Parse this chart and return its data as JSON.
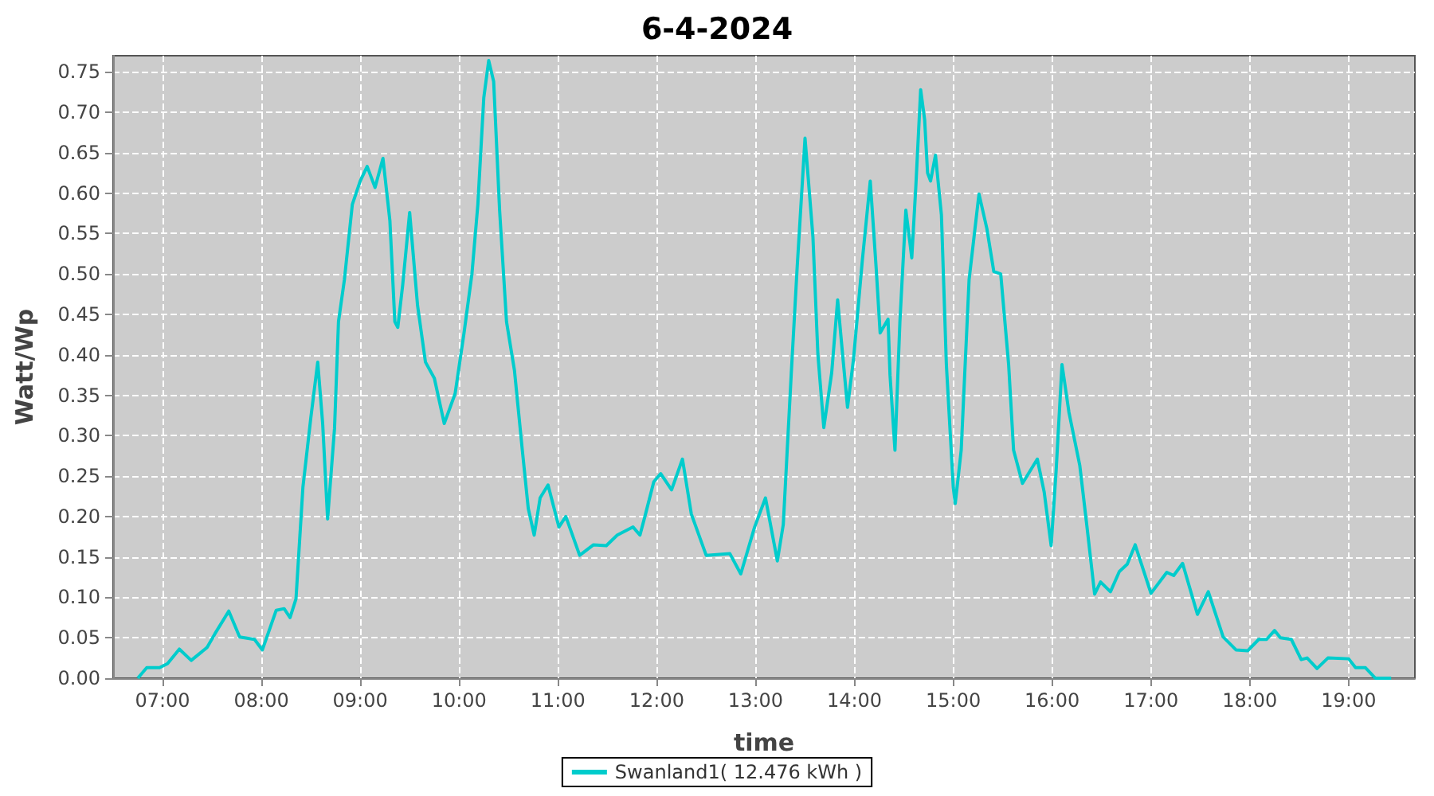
{
  "chart_data": {
    "type": "line",
    "title": "6-4-2024",
    "xlabel": "time",
    "ylabel": "Watt/Wp",
    "x": [
      6.75,
      6.84,
      6.97,
      7.05,
      7.17,
      7.29,
      7.45,
      7.53,
      7.67,
      7.78,
      7.93,
      8.01,
      8.15,
      8.23,
      8.29,
      8.35,
      8.42,
      8.5,
      8.57,
      8.62,
      8.67,
      8.74,
      8.78,
      8.84,
      8.92,
      9.0,
      9.07,
      9.15,
      9.23,
      9.3,
      9.35,
      9.38,
      9.43,
      9.5,
      9.58,
      9.66,
      9.75,
      9.85,
      9.96,
      10.05,
      10.13,
      10.19,
      10.25,
      10.3,
      10.35,
      10.41,
      10.48,
      10.56,
      10.64,
      10.7,
      10.76,
      10.82,
      10.9,
      11.01,
      11.08,
      11.22,
      11.36,
      11.49,
      11.6,
      11.76,
      11.83,
      11.88,
      11.97,
      12.04,
      12.15,
      12.26,
      12.35,
      12.5,
      12.74,
      12.85,
      12.99,
      13.1,
      13.22,
      13.28,
      13.36,
      13.42,
      13.5,
      13.58,
      13.63,
      13.69,
      13.77,
      13.83,
      13.87,
      13.93,
      13.99,
      14.08,
      14.16,
      14.22,
      14.26,
      14.34,
      14.36,
      14.41,
      14.46,
      14.52,
      14.56,
      14.58,
      14.62,
      14.67,
      14.71,
      14.74,
      14.77,
      14.82,
      14.88,
      14.93,
      15.0,
      15.02,
      15.08,
      15.16,
      15.26,
      15.34,
      15.41,
      15.48,
      15.56,
      15.61,
      15.7,
      15.85,
      15.92,
      15.99,
      16.04,
      16.1,
      16.17,
      16.28,
      16.35,
      16.43,
      16.49,
      16.59,
      16.68,
      16.76,
      16.84,
      17.0,
      17.16,
      17.23,
      17.32,
      17.47,
      17.58,
      17.73,
      17.86,
      17.98,
      18.09,
      18.17,
      18.25,
      18.31,
      18.42,
      18.52,
      18.58,
      18.68,
      18.79,
      19.0,
      19.07,
      19.17,
      19.27,
      19.43
    ],
    "series": [
      {
        "name": "Swanland1( 12.476 kWh )",
        "color": "#00cccc",
        "values": [
          0,
          0.013,
          0.013,
          0.018,
          0.036,
          0.022,
          0.038,
          0.055,
          0.083,
          0.051,
          0.048,
          0.035,
          0.084,
          0.086,
          0.075,
          0.098,
          0.236,
          0.322,
          0.391,
          0.315,
          0.197,
          0.309,
          0.441,
          0.493,
          0.586,
          0.615,
          0.633,
          0.607,
          0.643,
          0.566,
          0.441,
          0.434,
          0.487,
          0.576,
          0.461,
          0.391,
          0.371,
          0.315,
          0.352,
          0.427,
          0.5,
          0.586,
          0.718,
          0.764,
          0.738,
          0.579,
          0.441,
          0.381,
          0.282,
          0.21,
          0.177,
          0.223,
          0.239,
          0.187,
          0.2,
          0.152,
          0.165,
          0.164,
          0.177,
          0.187,
          0.177,
          0.2,
          0.243,
          0.253,
          0.233,
          0.271,
          0.203,
          0.152,
          0.154,
          0.129,
          0.187,
          0.223,
          0.145,
          0.19,
          0.375,
          0.507,
          0.668,
          0.546,
          0.401,
          0.31,
          0.378,
          0.468,
          0.414,
          0.335,
          0.394,
          0.517,
          0.615,
          0.507,
          0.427,
          0.444,
          0.375,
          0.282,
          0.441,
          0.579,
          0.54,
          0.52,
          0.606,
          0.728,
          0.691,
          0.625,
          0.615,
          0.647,
          0.573,
          0.388,
          0.236,
          0.216,
          0.282,
          0.493,
          0.599,
          0.556,
          0.503,
          0.5,
          0.388,
          0.282,
          0.241,
          0.271,
          0.23,
          0.164,
          0.256,
          0.388,
          0.329,
          0.263,
          0.19,
          0.104,
          0.119,
          0.107,
          0.132,
          0.141,
          0.165,
          0.105,
          0.131,
          0.127,
          0.142,
          0.079,
          0.107,
          0.051,
          0.035,
          0.034,
          0.048,
          0.048,
          0.059,
          0.05,
          0.048,
          0.023,
          0.025,
          0.012,
          0.025,
          0.024,
          0.013,
          0.013,
          0,
          0
        ]
      }
    ],
    "xlim": [
      6.5,
      19.67
    ],
    "xticks": [
      {
        "value": 7,
        "label": "07:00"
      },
      {
        "value": 8,
        "label": "08:00"
      },
      {
        "value": 9,
        "label": "09:00"
      },
      {
        "value": 10,
        "label": "10:00"
      },
      {
        "value": 11,
        "label": "11:00"
      },
      {
        "value": 12,
        "label": "12:00"
      },
      {
        "value": 13,
        "label": "13:00"
      },
      {
        "value": 14,
        "label": "14:00"
      },
      {
        "value": 15,
        "label": "15:00"
      },
      {
        "value": 16,
        "label": "16:00"
      },
      {
        "value": 17,
        "label": "17:00"
      },
      {
        "value": 18,
        "label": "18:00"
      },
      {
        "value": 19,
        "label": "19:00"
      }
    ],
    "ylim": [
      0,
      0.77
    ],
    "yticks": [
      {
        "value": 0,
        "label": "0.00"
      },
      {
        "value": 0.05,
        "label": "0.05"
      },
      {
        "value": 0.1,
        "label": "0.10"
      },
      {
        "value": 0.15,
        "label": "0.15"
      },
      {
        "value": 0.2,
        "label": "0.20"
      },
      {
        "value": 0.25,
        "label": "0.25"
      },
      {
        "value": 0.3,
        "label": "0.30"
      },
      {
        "value": 0.35,
        "label": "0.35"
      },
      {
        "value": 0.4,
        "label": "0.40"
      },
      {
        "value": 0.45,
        "label": "0.45"
      },
      {
        "value": 0.5,
        "label": "0.50"
      },
      {
        "value": 0.55,
        "label": "0.55"
      },
      {
        "value": 0.6,
        "label": "0.60"
      },
      {
        "value": 0.65,
        "label": "0.65"
      },
      {
        "value": 0.7,
        "label": "0.70"
      },
      {
        "value": 0.75,
        "label": "0.75"
      }
    ],
    "grid": true,
    "legend": "bottom",
    "marker": "none"
  }
}
